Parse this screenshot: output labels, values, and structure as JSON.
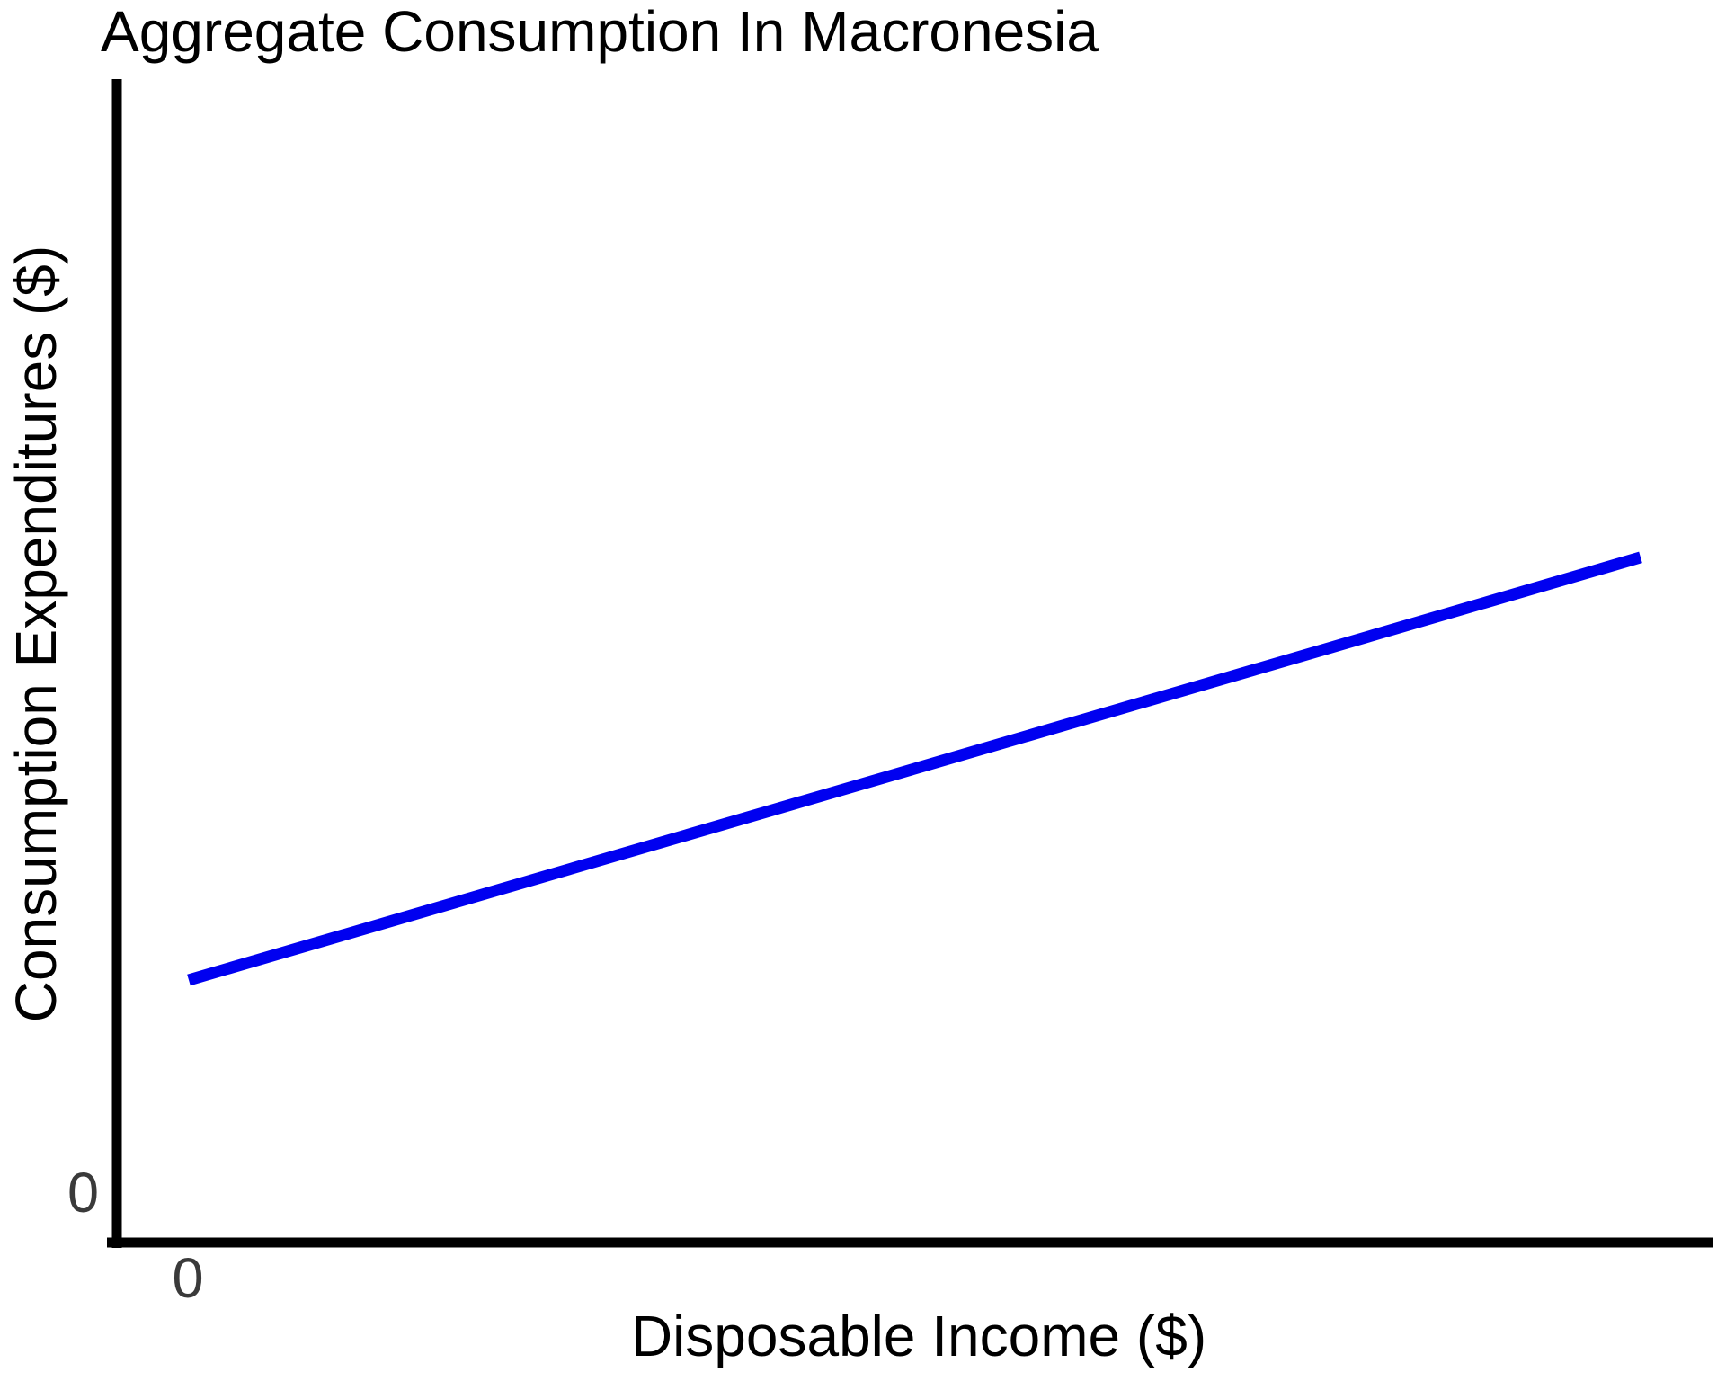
{
  "colors": {
    "background": "#ffffff",
    "axis": "#000000",
    "text": "#000000",
    "tick": "#3a3a3a",
    "line": "#0000f0"
  },
  "chart_data": {
    "type": "line",
    "title": "Aggregate Consumption In Macronesia",
    "xlabel": "Disposable Income ($)",
    "ylabel": "Consumption Expenditures ($)",
    "x_tick_labels": [
      "0"
    ],
    "y_tick_labels": [
      "0"
    ],
    "grid": false,
    "legend": "none",
    "axes_note": "No numeric scale shown; only 0 labeled at origin of each axis",
    "series": [
      {
        "name": "aggregate-consumption-function",
        "style": "solid",
        "x_frac": [
          0.0,
          1.0
        ],
        "y_frac": [
          0.19,
          0.57
        ],
        "description": "Upward-sloping straight consumption line with positive vertical intercept (autonomous consumption); slope (MPC-like) ~0.38 in normalized axis units"
      }
    ]
  }
}
